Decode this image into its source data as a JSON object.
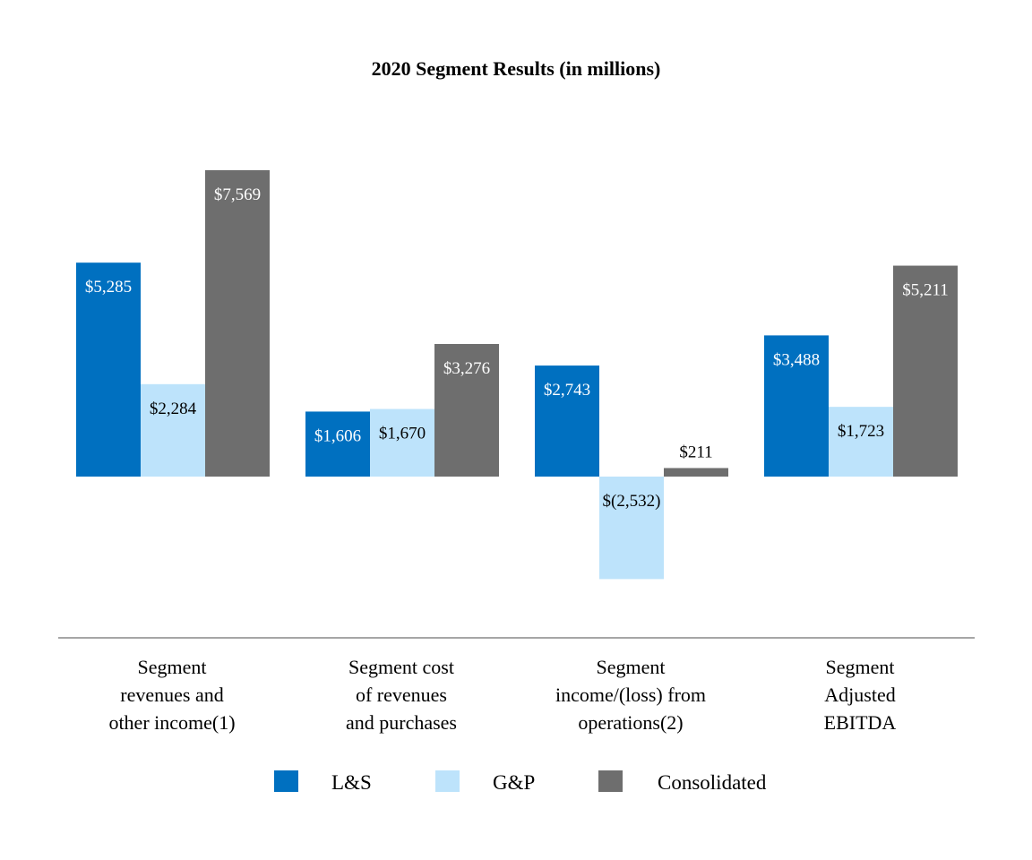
{
  "chart_data": {
    "type": "bar",
    "title": "2020 Segment Results (in millions)",
    "xlabel": "",
    "ylabel": "",
    "ylim": [
      -2532,
      7569
    ],
    "grid": false,
    "legend_position": "bottom",
    "categories": [
      [
        "Segment",
        "revenues and",
        "other income(1)"
      ],
      [
        "Segment cost",
        "of revenues",
        "and purchases"
      ],
      [
        "Segment",
        "income/(loss) from",
        "operations(2)"
      ],
      [
        "Segment",
        "Adjusted",
        "EBITDA"
      ]
    ],
    "series": [
      {
        "name": "L&S",
        "color": "#0070C0",
        "label_color": "#ffffff",
        "values": [
          5285,
          1606,
          2743,
          3488
        ],
        "labels": [
          "$5,285",
          "$1,606",
          "$2,743",
          "$3,488"
        ]
      },
      {
        "name": "G&P",
        "color": "#BDE3FB",
        "label_color": "#000000",
        "values": [
          2284,
          1670,
          -2532,
          1723
        ],
        "labels": [
          "$2,284",
          "$1,670",
          "$(2,532)",
          "$1,723"
        ]
      },
      {
        "name": "Consolidated",
        "color": "#6E6E6E",
        "label_color": "#ffffff",
        "values": [
          7569,
          3276,
          211,
          5211
        ],
        "labels": [
          "$7,569",
          "$3,276",
          "$211",
          "$5,211"
        ]
      }
    ],
    "axis_line_color": "#A6A6A6"
  }
}
